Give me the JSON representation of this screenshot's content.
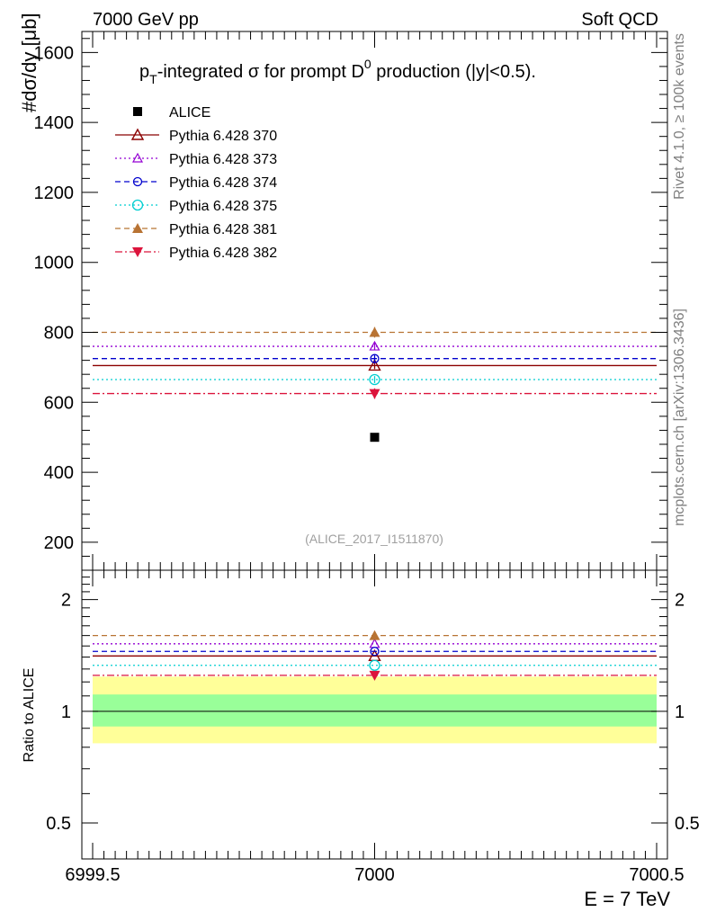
{
  "header": {
    "left": "7000 GeV pp",
    "right": "Soft QCD"
  },
  "side_text": {
    "rivet": "Rivet 4.1.0, ≥ 100k events",
    "mcplots": "mcplots.cern.ch [arXiv:1306.3436]"
  },
  "chart_data": [
    {
      "type": "line",
      "title": "p_T-integrated σ for prompt D^0 production (|y|<0.5).",
      "ylabel": "#dσ/dy [μb]",
      "watermark": "(ALICE_2017_I1511870)",
      "xlim": [
        6999.5,
        7000.5
      ],
      "ylim": [
        120,
        1660
      ],
      "y_ticks": [
        200,
        400,
        600,
        800,
        1000,
        1200,
        1400,
        1600
      ],
      "grid": false,
      "legend_position": "top-left",
      "data": {
        "name": "ALICE",
        "x": [
          7000
        ],
        "y": [
          500
        ],
        "marker": "filled-square",
        "color": "#000000"
      },
      "series": [
        {
          "name": "Pythia 6.428 370",
          "x": [
            7000
          ],
          "y": [
            705
          ],
          "yerr": [
            10
          ],
          "color": "#8b0000",
          "dash": "solid",
          "marker": "open-triangle-up"
        },
        {
          "name": "Pythia 6.428 373",
          "x": [
            7000
          ],
          "y": [
            760
          ],
          "yerr": [
            10
          ],
          "color": "#9400d3",
          "dash": "dotted",
          "marker": "open-triangle-up-small"
        },
        {
          "name": "Pythia 6.428 374",
          "x": [
            7000
          ],
          "y": [
            725
          ],
          "yerr": [
            10
          ],
          "color": "#0000cd",
          "dash": "dashed",
          "marker": "open-circle"
        },
        {
          "name": "Pythia 6.428 375",
          "x": [
            7000
          ],
          "y": [
            665
          ],
          "yerr": [
            10
          ],
          "color": "#00ced1",
          "dash": "dotted",
          "marker": "open-circle-large"
        },
        {
          "name": "Pythia 6.428 381",
          "x": [
            7000
          ],
          "y": [
            800
          ],
          "yerr": [
            15
          ],
          "color": "#b87333",
          "dash": "dashed",
          "marker": "filled-triangle-up"
        },
        {
          "name": "Pythia 6.428 382",
          "x": [
            7000
          ],
          "y": [
            625
          ],
          "yerr": [
            15
          ],
          "color": "#dc143c",
          "dash": "dashdot",
          "marker": "filled-triangle-down"
        }
      ]
    },
    {
      "type": "line",
      "ylabel": "Ratio to ALICE",
      "xlabel": "E = 7 TeV",
      "xlim": [
        6999.5,
        7000.5
      ],
      "x_ticks": [
        6999.5,
        7000,
        7000.5
      ],
      "x_tick_labels": [
        "6999.5",
        "7000",
        "7000.5"
      ],
      "ylim": [
        0.4,
        2.4
      ],
      "y_scale": "log",
      "y_ticks": [
        0.5,
        1,
        2
      ],
      "y_tick_labels": [
        "0.5",
        "1",
        "2"
      ],
      "bands": [
        {
          "name": "stat",
          "low": 0.91,
          "high": 1.11,
          "color": "#99ff99"
        },
        {
          "name": "total",
          "low": 0.82,
          "high": 1.24,
          "color": "#ffff99"
        }
      ],
      "series": [
        {
          "name": "Pythia 6.428 370",
          "x": [
            7000
          ],
          "y": [
            1.41
          ],
          "color": "#8b0000",
          "dash": "solid",
          "marker": "open-triangle-up"
        },
        {
          "name": "Pythia 6.428 373",
          "x": [
            7000
          ],
          "y": [
            1.52
          ],
          "color": "#9400d3",
          "dash": "dotted",
          "marker": "open-triangle-up-small"
        },
        {
          "name": "Pythia 6.428 374",
          "x": [
            7000
          ],
          "y": [
            1.45
          ],
          "color": "#0000cd",
          "dash": "dashed",
          "marker": "open-circle"
        },
        {
          "name": "Pythia 6.428 375",
          "x": [
            7000
          ],
          "y": [
            1.33
          ],
          "color": "#00ced1",
          "dash": "dotted",
          "marker": "open-circle-large"
        },
        {
          "name": "Pythia 6.428 381",
          "x": [
            7000
          ],
          "y": [
            1.6
          ],
          "color": "#b87333",
          "dash": "dashed",
          "marker": "filled-triangle-up"
        },
        {
          "name": "Pythia 6.428 382",
          "x": [
            7000
          ],
          "y": [
            1.25
          ],
          "color": "#dc143c",
          "dash": "dashdot",
          "marker": "filled-triangle-down"
        }
      ]
    }
  ]
}
